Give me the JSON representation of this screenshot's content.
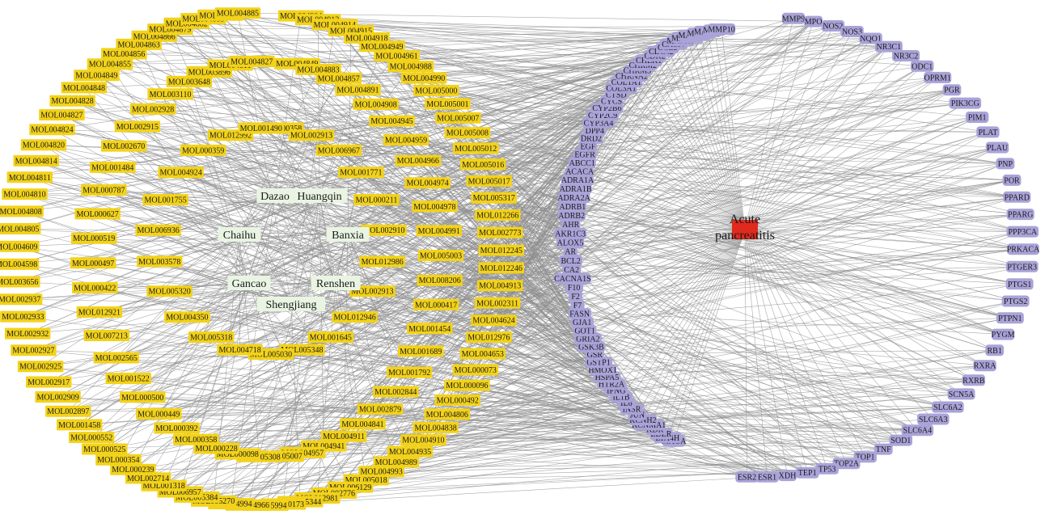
{
  "disease": "Acute pancreatitis",
  "herbs": [
    "Dazao",
    "Huangqin",
    "Chaihu",
    "Banxia",
    "Gancao",
    "Renshen",
    "Shengjiang"
  ],
  "molecules": {
    "outer": [
      "MOL004904",
      "MOL004912",
      "MOL004914",
      "MOL004915",
      "MOL004918",
      "MOL004949",
      "MOL004961",
      "MOL004988",
      "MOL004990",
      "MOL005000",
      "MOL005001",
      "MOL005007",
      "MOL005008",
      "MOL005012",
      "MOL005016",
      "MOL005017",
      "MOL005317",
      "MOL012266",
      "MOL002773",
      "MOL012245",
      "MOL012246",
      "MOL004913",
      "MOL002311",
      "MOL004624",
      "MOL012976",
      "MOL004653",
      "MOL000073",
      "MOL000096",
      "MOL000492",
      "MOL004806",
      "MOL004838",
      "MOL004910",
      "MOL004935",
      "MOL004989",
      "MOL004993",
      "MOL005018",
      "MOL006129",
      "MOL002776",
      "MOL012981",
      "MOL005344",
      "MOL000173",
      "MOL005994",
      "MOL004966",
      "MOL004994",
      "MOL005270",
      "MOL005384",
      "MOL006957",
      "MOL001318",
      "MOL002714",
      "MOL000239",
      "MOL000354",
      "MOL000525",
      "MOL000552",
      "MOL001458",
      "MOL002897",
      "MOL002909",
      "MOL002917",
      "MOL002925",
      "MOL002927",
      "MOL002932",
      "MOL002933",
      "MOL002937",
      "MOL003656",
      "MOL004598",
      "MOL004609",
      "MOL004805",
      "MOL004808",
      "MOL004810",
      "MOL004811",
      "MOL004814",
      "MOL004820",
      "MOL004824",
      "MOL004827",
      "MOL004828",
      "MOL004848",
      "MOL004849",
      "MOL004855",
      "MOL004856",
      "MOL004863",
      "MOL004866",
      "MOL004879",
      "MOL004882",
      "MOL004883",
      "MOL004884",
      "MOL004885"
    ],
    "mid": [
      "MOL004849",
      "MOL004883",
      "MOL004857",
      "MOL004891",
      "MOL004908",
      "MOL004945",
      "MOL004959",
      "MOL004966",
      "MOL004974",
      "MOL004978",
      "MOL004991",
      "MOL005003",
      "MOL008206",
      "MOL000417",
      "MOL001454",
      "MOL001689",
      "MOL001792",
      "MOL002844",
      "MOL002879",
      "MOL004841",
      "MOL004911",
      "MOL004941",
      "MOL004957",
      "MOL005007",
      "MOL005308",
      "MOL000098",
      "MOL000228",
      "MOL000358",
      "MOL000392",
      "MOL000449",
      "MOL000500",
      "MOL001522",
      "MOL002565",
      "MOL007213",
      "MOL012921",
      "MOL000422",
      "MOL000497",
      "MOL000519",
      "MOL000627",
      "MOL000787",
      "MOL001484",
      "MOL002670",
      "MOL002915",
      "MOL002928",
      "MOL003110",
      "MOL003648",
      "MOL003896",
      "MOL004811",
      "MOL004827"
    ],
    "inner": [
      "MOL000358",
      "MOL002913",
      "MOL006967",
      "MOL001771",
      "MOL000211",
      "MOL002910",
      "MOL012986",
      "MOL002913",
      "MOL012946",
      "MOL001645",
      "MOL005348",
      "MOL005030",
      "MOL004718",
      "MOL005318",
      "MOL004350",
      "MOL005320",
      "MOL003578",
      "MOL006936",
      "MOL001755",
      "MOL004924",
      "MOL000359",
      "MOL012992",
      "MOL001490"
    ]
  },
  "targets": {
    "inner": [
      "MAOA",
      "LTA4H",
      "LDLR",
      "KDR",
      "KCNMA1",
      "KCNH2",
      "JUN",
      "INSR",
      "IL6",
      "IL1B",
      "IFNG",
      "HTR2A",
      "HSPA5",
      "HMOX1",
      "GSTP1",
      "GSR",
      "GSK3B",
      "GRIA2",
      "GOT1",
      "GJA1",
      "FASN",
      "F7",
      "F2",
      "F10",
      "CACNA1S",
      "CA2",
      "BCL2",
      "AR",
      "ALOX5",
      "AKR1C3",
      "AHR",
      "ADRB2",
      "ADRB1",
      "ADRA2A",
      "ADRA1B",
      "ADRA1A",
      "ACACA",
      "ABCC1",
      "EGFR",
      "EGF",
      "DRD2",
      "DPP4",
      "CYP3A4",
      "CYP2C9",
      "CYP2B6",
      "CYCS",
      "CTSD",
      "COL3A1",
      "COL1A1",
      "CHRNA2",
      "CHRM3",
      "CHRM2",
      "CHEK1",
      "CDK2",
      "CDC42",
      "CCL2",
      "CASP7",
      "MAPK1",
      "MAPK10",
      "MAPK14",
      "MAPK3",
      "MAPK8",
      "MMP1",
      "MMP10"
    ],
    "outer": [
      "MMP9",
      "MPO",
      "NOS2",
      "NOS3",
      "NQO1",
      "NR3C1",
      "NR3C2",
      "ODC1",
      "OPRM1",
      "PGR",
      "PIK3CG",
      "PIM1",
      "PLAT",
      "PLAU",
      "PNP",
      "POR",
      "PPARD",
      "PPARG",
      "PPP3CA",
      "PRKACA",
      "PTGER3",
      "PTGS1",
      "PTGS2",
      "PTPN1",
      "PYGM",
      "RB1",
      "RXRA",
      "RXRB",
      "SCN5A",
      "SLC6A2",
      "SLC6A3",
      "SLC6A4",
      "SOD1",
      "TNF",
      "TOP1",
      "TOP2A",
      "TP53",
      "TEP1",
      "XDH",
      "ESR1",
      "ESR2"
    ]
  },
  "colors": {
    "molecule": "#f2d21b",
    "target": "#a9a3d8",
    "herb": "#e9f4e3",
    "disease": "#e02a1e",
    "edge": "#8e8e8e"
  }
}
